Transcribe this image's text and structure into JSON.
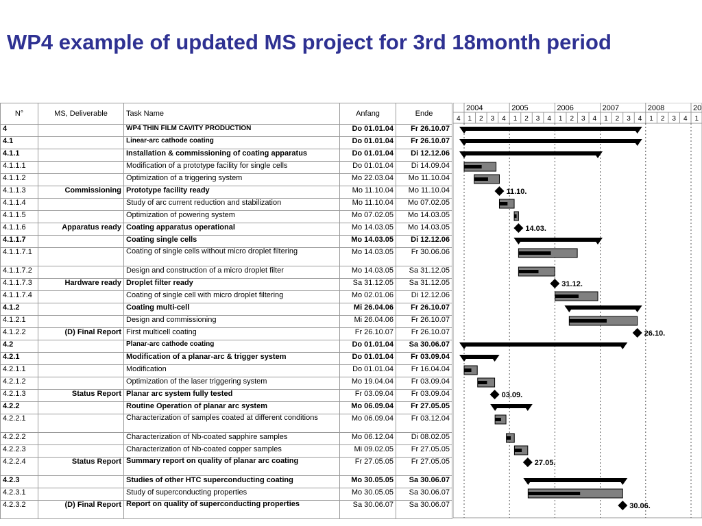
{
  "title": "WP4 example of updated MS project for 3rd 18month period",
  "headers": {
    "id": "N°",
    "ms": "MS, Deliverable",
    "task": "Task Name",
    "start": "Anfang",
    "end": "Ende"
  },
  "years": [
    "2004",
    "2005",
    "2006",
    "2007",
    "2008",
    "20"
  ],
  "quarters": [
    "4",
    "1",
    "2",
    "3",
    "4",
    "1",
    "2",
    "3",
    "4",
    "1",
    "2",
    "3",
    "4",
    "1",
    "2",
    "3",
    "4",
    "1",
    "2",
    "3",
    "4",
    "1"
  ],
  "chart_data": {
    "type": "gantt",
    "rows": [
      {
        "id": "4",
        "ms": "",
        "task": "WP4  THIN FILM CAVITY PRODUCTION",
        "start": "Do 01.01.04",
        "end": "Fr 26.10.07",
        "bold": true,
        "indent": 1,
        "kind": "summary",
        "s": "2004-01-01",
        "e": "2007-10-26",
        "h": 18
      },
      {
        "id": "4.1",
        "ms": "",
        "task": "Linear-arc cathode coating",
        "start": "Do 01.01.04",
        "end": "Fr 26.10.07",
        "bold": true,
        "indent": 2,
        "kind": "summary",
        "s": "2004-01-01",
        "e": "2007-10-26",
        "h": 18
      },
      {
        "id": "4.1.1",
        "ms": "",
        "task": "Installation & commissioning of coating apparatus",
        "start": "Do 01.01.04",
        "end": "Di 12.12.06",
        "bold": true,
        "indent": 3,
        "kind": "summary",
        "s": "2004-01-01",
        "e": "2006-12-12",
        "h": 18
      },
      {
        "id": "4.1.1.1",
        "ms": "",
        "task": "Modification of a prototype facility for single cells",
        "start": "Do 01.01.04",
        "end": "Di 14.09.04",
        "bold": false,
        "indent": 4,
        "kind": "task",
        "s": "2004-01-01",
        "e": "2004-09-14",
        "h": 18
      },
      {
        "id": "4.1.1.2",
        "ms": "",
        "task": "Optimization of a triggering system",
        "start": "Mo 22.03.04",
        "end": "Mo 11.10.04",
        "bold": false,
        "indent": 4,
        "kind": "task",
        "s": "2004-03-22",
        "e": "2004-10-11",
        "h": 18
      },
      {
        "id": "4.1.1.3",
        "ms": "Commissioning",
        "task": "Prototype facility ready",
        "start": "Mo 11.10.04",
        "end": "Mo 11.10.04",
        "bold": false,
        "taskbold": true,
        "indent": 4,
        "kind": "milestone",
        "s": "2004-10-11",
        "label": "11.10.",
        "h": 18
      },
      {
        "id": "4.1.1.4",
        "ms": "",
        "task": "Study of arc current reduction and stabilization",
        "start": "Mo 11.10.04",
        "end": "Mo 07.02.05",
        "bold": false,
        "indent": 4,
        "kind": "task",
        "s": "2004-10-11",
        "e": "2005-02-07",
        "h": 18
      },
      {
        "id": "4.1.1.5",
        "ms": "",
        "task": "Optimization of powering system",
        "start": "Mo 07.02.05",
        "end": "Mo 14.03.05",
        "bold": false,
        "indent": 4,
        "kind": "task",
        "s": "2005-02-07",
        "e": "2005-03-14",
        "h": 18
      },
      {
        "id": "4.1.1.6",
        "ms": "Apparatus ready",
        "task": "Coating apparatus operational",
        "start": "Mo 14.03.05",
        "end": "Mo 14.03.05",
        "bold": false,
        "taskbold": true,
        "indent": 4,
        "kind": "milestone",
        "s": "2005-03-14",
        "label": "14.03.",
        "h": 18
      },
      {
        "id": "4.1.1.7",
        "ms": "",
        "task": "Coating single cells",
        "start": "Mo 14.03.05",
        "end": "Di 12.12.06",
        "bold": true,
        "indent": 4,
        "kind": "summary",
        "s": "2005-03-14",
        "e": "2006-12-12",
        "h": 18
      },
      {
        "id": "4.1.1.7.1",
        "ms": "",
        "task": "Coating of single cells without micro droplet filtering",
        "start": "Mo 14.03.05",
        "end": "Fr 30.06.06",
        "bold": false,
        "indent": 5,
        "kind": "task",
        "s": "2005-03-14",
        "e": "2006-06-30",
        "h": 27,
        "wrap": true
      },
      {
        "id": "4.1.1.7.2",
        "ms": "",
        "task": "Design and construction of a micro droplet filter",
        "start": "Mo 14.03.05",
        "end": "Sa 31.12.05",
        "bold": false,
        "indent": 5,
        "kind": "task",
        "s": "2005-03-14",
        "e": "2005-12-31",
        "h": 18
      },
      {
        "id": "4.1.1.7.3",
        "ms": "Hardware ready",
        "task": "Droplet filter ready",
        "start": "Sa 31.12.05",
        "end": "Sa 31.12.05",
        "bold": false,
        "taskbold": true,
        "indent": 5,
        "kind": "milestone",
        "s": "2005-12-31",
        "label": "31.12.",
        "h": 18
      },
      {
        "id": "4.1.1.7.4",
        "ms": "",
        "task": "Coating of single cell with micro droplet filtering",
        "start": "Mo 02.01.06",
        "end": "Di 12.12.06",
        "bold": false,
        "indent": 5,
        "kind": "task",
        "s": "2006-01-02",
        "e": "2006-12-12",
        "h": 18
      },
      {
        "id": "4.1.2",
        "ms": "",
        "task": "Coating multi-cell",
        "start": "Mi 26.04.06",
        "end": "Fr 26.10.07",
        "bold": true,
        "indent": 3,
        "kind": "summary",
        "s": "2006-04-26",
        "e": "2007-10-26",
        "h": 18
      },
      {
        "id": "4.1.2.1",
        "ms": "",
        "task": "Design and commissioning",
        "start": "Mi 26.04.06",
        "end": "Fr 26.10.07",
        "bold": false,
        "indent": 4,
        "kind": "task",
        "s": "2006-04-26",
        "e": "2007-10-26",
        "h": 18
      },
      {
        "id": "4.1.2.2",
        "ms": "(D) Final Report",
        "task": "First multicell coating",
        "start": "Fr 26.10.07",
        "end": "Fr 26.10.07",
        "bold": false,
        "indent": 4,
        "kind": "milestone",
        "s": "2007-10-26",
        "label": "26.10.",
        "h": 18
      },
      {
        "id": "4.2",
        "ms": "",
        "task": "Planar-arc cathode coating",
        "start": "Do 01.01.04",
        "end": "Sa 30.06.07",
        "bold": true,
        "indent": 2,
        "kind": "summary",
        "s": "2004-01-01",
        "e": "2007-06-30",
        "h": 18
      },
      {
        "id": "4.2.1",
        "ms": "",
        "task": "Modification of a planar-arc & trigger  system",
        "start": "Do 01.01.04",
        "end": "Fr 03.09.04",
        "bold": true,
        "indent": 3,
        "kind": "summary",
        "s": "2004-01-01",
        "e": "2004-09-03",
        "h": 18
      },
      {
        "id": "4.2.1.1",
        "ms": "",
        "task": "Modification",
        "start": "Do 01.01.04",
        "end": "Fr 16.04.04",
        "bold": false,
        "indent": 4,
        "kind": "task",
        "s": "2004-01-01",
        "e": "2004-04-16",
        "h": 18
      },
      {
        "id": "4.2.1.2",
        "ms": "",
        "task": "Optimization of the laser triggering system",
        "start": "Mo 19.04.04",
        "end": "Fr 03.09.04",
        "bold": false,
        "indent": 4,
        "kind": "task",
        "s": "2004-04-19",
        "e": "2004-09-03",
        "h": 18
      },
      {
        "id": "4.2.1.3",
        "ms": "Status Report",
        "task": "Planar arc system fully tested",
        "start": "Fr 03.09.04",
        "end": "Fr 03.09.04",
        "bold": false,
        "taskbold": true,
        "indent": 4,
        "kind": "milestone",
        "s": "2004-09-03",
        "label": "03.09.",
        "h": 18
      },
      {
        "id": "4.2.2",
        "ms": "",
        "task": "Routine Operation of planar arc system",
        "start": "Mo 06.09.04",
        "end": "Fr 27.05.05",
        "bold": true,
        "indent": 3,
        "kind": "summary",
        "s": "2004-09-06",
        "e": "2005-05-27",
        "h": 18
      },
      {
        "id": "4.2.2.1",
        "ms": "",
        "task": "Characterization of samples coated at different conditions",
        "start": "Mo 06.09.04",
        "end": "Fr 03.12.04",
        "bold": false,
        "indent": 4,
        "kind": "task",
        "s": "2004-09-06",
        "e": "2004-12-03",
        "h": 27,
        "wrap": true
      },
      {
        "id": "4.2.2.2",
        "ms": "",
        "task": "Characterization of Nb-coated sapphire samples",
        "start": "Mo 06.12.04",
        "end": "Di 08.02.05",
        "bold": false,
        "indent": 4,
        "kind": "task",
        "s": "2004-12-06",
        "e": "2005-02-08",
        "h": 18,
        "big": true
      },
      {
        "id": "4.2.2.3",
        "ms": "",
        "task": "Characterization of Nb-coated copper samples",
        "start": "Mi 09.02.05",
        "end": "Fr 27.05.05",
        "bold": false,
        "indent": 4,
        "kind": "task",
        "s": "2005-02-09",
        "e": "2005-05-27",
        "h": 18,
        "big": true
      },
      {
        "id": "4.2.2.4",
        "ms": "Status Report",
        "task": "Summary report on quality of planar arc coating",
        "start": "Fr 27.05.05",
        "end": "Fr 27.05.05",
        "bold": false,
        "taskbold": true,
        "indent": 4,
        "kind": "milestone",
        "s": "2005-05-27",
        "label": "27.05.",
        "h": 27,
        "wrap": true
      },
      {
        "id": "4.2.3",
        "ms": "",
        "task": "Studies of other HTC superconducting coating",
        "start": "Mo 30.05.05",
        "end": "Sa 30.06.07",
        "bold": true,
        "indent": 3,
        "kind": "summary",
        "s": "2005-05-30",
        "e": "2007-06-30",
        "h": 18
      },
      {
        "id": "4.2.3.1",
        "ms": "",
        "task": "Study of superconducting properties",
        "start": "Mo 30.05.05",
        "end": "Sa 30.06.07",
        "bold": false,
        "indent": 4,
        "kind": "task",
        "s": "2005-05-30",
        "e": "2007-06-30",
        "h": 18
      },
      {
        "id": "4.2.3.2",
        "ms": "(D) Final Report",
        "task": "Report on quality of superconducting properties",
        "start": "Sa 30.06.07",
        "end": "Sa 30.06.07",
        "bold": false,
        "taskbold": true,
        "indent": 4,
        "kind": "milestone",
        "s": "2007-06-30",
        "label": "30.06.",
        "h": 27,
        "wrap": true
      }
    ]
  }
}
